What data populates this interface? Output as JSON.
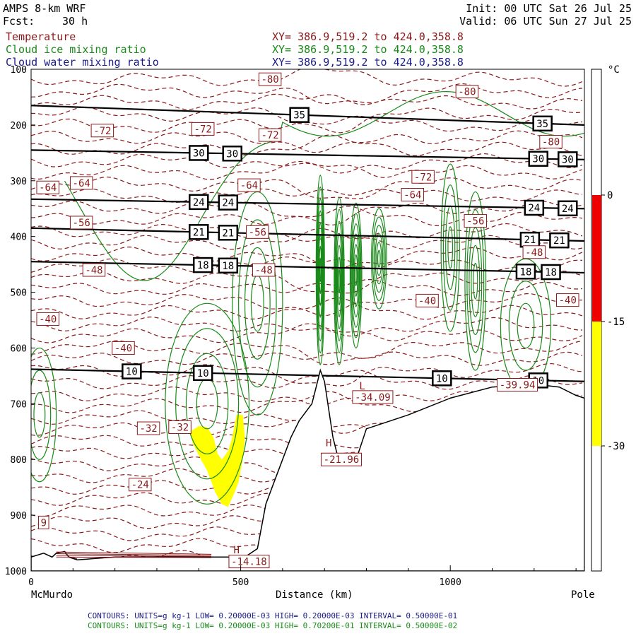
{
  "header": {
    "model": "AMPS 8-km WRF",
    "init": "Init: 00 UTC Sat 26 Jul 25",
    "fcst_label": "Fcst:",
    "fcst_value": "30 h",
    "valid": "Valid: 06 UTC Sun 27 Jul 25"
  },
  "fields": [
    {
      "name": "Temperature",
      "xy": "XY= 386.9,519.2 to 424.0,358.8",
      "color": "#8b1a1a"
    },
    {
      "name": "Cloud ice mixing ratio",
      "xy": "XY= 386.9,519.2 to 424.0,358.8",
      "color": "#1a8b1a"
    },
    {
      "name": "Cloud water mixing ratio",
      "xy": "XY= 386.9,519.2 to 424.0,358.8",
      "color": "#1a1a8b"
    }
  ],
  "footer": {
    "line1": "CONTOURS: UNITS=g kg-1 LOW= 0.20000E-03 HIGH= 0.20000E-03 INTERVAL= 0.50000E-01",
    "line2": "CONTOURS: UNITS=g kg-1 LOW= 0.20000E-03 HIGH= 0.70200E-01 INTERVAL= 0.50000E-02",
    "line1_color": "#1a1a8b",
    "line2_color": "#1a8b1a"
  },
  "chart_data": {
    "type": "cross-section contour",
    "xlabel": "Distance (km)",
    "x_ticks": [
      0,
      500,
      1000
    ],
    "xlim": [
      0,
      1320
    ],
    "x_end_labels": {
      "left": "McMurdo",
      "right": "Pole"
    },
    "ylim": [
      1000,
      100
    ],
    "y_ticks": [
      100,
      200,
      300,
      400,
      500,
      600,
      700,
      800,
      900,
      1000
    ],
    "colorbar": {
      "unit": "°C",
      "ticks": [
        0,
        -15,
        -30
      ],
      "bands": [
        {
          "from": 0,
          "to": -15,
          "color": "#ee0000"
        },
        {
          "from": -15,
          "to": -30,
          "color": "#ffff00"
        }
      ]
    },
    "theta_lines": [
      {
        "value": 35,
        "x": [
          0,
          1320
        ],
        "p": [
          165,
          200
        ],
        "labels_x": [
          640,
          1220
        ]
      },
      {
        "value": 30,
        "x": [
          0,
          1320
        ],
        "p": [
          245,
          262
        ],
        "labels_x": [
          400,
          480,
          1210,
          1280
        ]
      },
      {
        "value": 24,
        "x": [
          0,
          1320
        ],
        "p": [
          333,
          350
        ],
        "labels_x": [
          400,
          470,
          1200,
          1280
        ]
      },
      {
        "value": 21,
        "x": [
          0,
          1320
        ],
        "p": [
          385,
          408
        ],
        "labels_x": [
          400,
          470,
          1190,
          1260
        ]
      },
      {
        "value": 18,
        "x": [
          0,
          1320
        ],
        "p": [
          445,
          465
        ],
        "labels_x": [
          410,
          470,
          1180,
          1240
        ]
      },
      {
        "value": 10,
        "x": [
          0,
          1320
        ],
        "p": [
          638,
          660
        ],
        "labels_x": [
          240,
          410,
          980,
          1210
        ]
      }
    ],
    "temperature_labels": [
      {
        "text": "-80",
        "x": 570,
        "p": 118
      },
      {
        "text": "-80",
        "x": 1040,
        "p": 140
      },
      {
        "text": "-80",
        "x": 1240,
        "p": 230
      },
      {
        "text": "-72",
        "x": 170,
        "p": 210
      },
      {
        "text": "-72",
        "x": 410,
        "p": 207
      },
      {
        "text": "-72",
        "x": 570,
        "p": 218
      },
      {
        "text": "-72",
        "x": 935,
        "p": 293
      },
      {
        "text": "-64",
        "x": 40,
        "p": 312
      },
      {
        "text": "-64",
        "x": 120,
        "p": 304
      },
      {
        "text": "-64",
        "x": 520,
        "p": 308
      },
      {
        "text": "-64",
        "x": 910,
        "p": 325
      },
      {
        "text": "-56",
        "x": 120,
        "p": 375
      },
      {
        "text": "-56",
        "x": 540,
        "p": 392
      },
      {
        "text": "-56",
        "x": 1060,
        "p": 372
      },
      {
        "text": "-48",
        "x": 150,
        "p": 460
      },
      {
        "text": "-48",
        "x": 555,
        "p": 460
      },
      {
        "text": "-48",
        "x": 1200,
        "p": 428
      },
      {
        "text": "-40",
        "x": 40,
        "p": 548
      },
      {
        "text": "-40",
        "x": 220,
        "p": 600
      },
      {
        "text": "-40",
        "x": 945,
        "p": 515
      },
      {
        "text": "-40",
        "x": 1280,
        "p": 514
      },
      {
        "text": "-39.94",
        "x": 1160,
        "p": 666
      },
      {
        "text": "-32",
        "x": 280,
        "p": 744
      },
      {
        "text": "-32",
        "x": 355,
        "p": 742
      },
      {
        "text": "-24",
        "x": 260,
        "p": 845
      },
      {
        "text": "-21.96",
        "x": 740,
        "p": 800
      },
      {
        "text": "-34.09",
        "x": 815,
        "p": 688
      },
      {
        "text": "-14.18",
        "x": 520,
        "p": 983
      },
      {
        "text": "9",
        "x": 30,
        "p": 913
      }
    ],
    "extrema_markers": [
      {
        "text": "H",
        "x": 710,
        "p": 770
      },
      {
        "text": "H",
        "x": 490,
        "p": 962
      },
      {
        "text": "L",
        "x": 790,
        "p": 668
      }
    ],
    "terrain": {
      "x": [
        0,
        30,
        50,
        60,
        80,
        90,
        110,
        200,
        300,
        420,
        490,
        510,
        540,
        560,
        580,
        600,
        620,
        640,
        670,
        680,
        690,
        700,
        720,
        730,
        740,
        750,
        780,
        800,
        900,
        1000,
        1100,
        1200,
        1260,
        1300,
        1320
      ],
      "p": [
        975,
        968,
        975,
        968,
        965,
        975,
        980,
        975,
        975,
        975,
        975,
        975,
        960,
        880,
        840,
        800,
        760,
        730,
        700,
        670,
        640,
        660,
        760,
        790,
        800,
        795,
        790,
        745,
        720,
        690,
        670,
        665,
        670,
        685,
        690
      ]
    },
    "yellow_shading": [
      {
        "x": [
          380,
          400,
          420,
          435,
          445,
          455,
          470,
          480,
          490,
          505,
          510,
          505,
          495,
          485,
          470,
          455,
          440,
          430,
          420,
          405,
          395,
          385
        ],
        "p": [
          750,
          740,
          742,
          760,
          790,
          800,
          785,
          760,
          720,
          720,
          760,
          800,
          840,
          860,
          885,
          880,
          860,
          840,
          820,
          800,
          785,
          770
        ]
      }
    ]
  }
}
